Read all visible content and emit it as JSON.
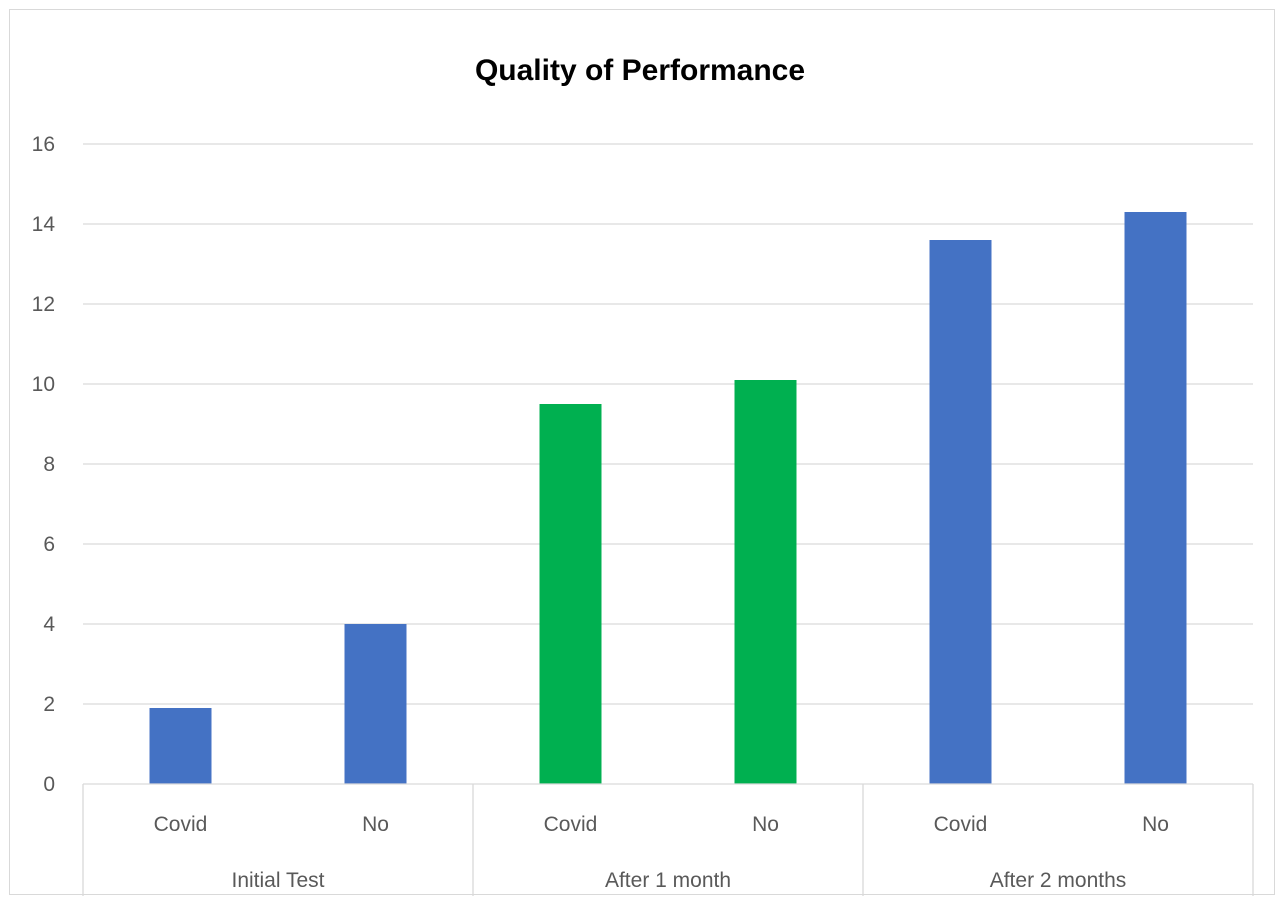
{
  "chart_data": {
    "type": "bar",
    "title": "Quality of Performance",
    "xlabel": "",
    "ylabel": "",
    "ylim": [
      0,
      16
    ],
    "y_ticks": [
      0,
      2,
      4,
      6,
      8,
      10,
      12,
      14,
      16
    ],
    "grid": true,
    "legend": "none",
    "groups": [
      {
        "label": "Initial Test",
        "categories": [
          "Covid",
          "No"
        ]
      },
      {
        "label": "After 1 month",
        "categories": [
          "Covid",
          "No"
        ]
      },
      {
        "label": "After 2 months",
        "categories": [
          "Covid",
          "No"
        ]
      }
    ],
    "categories": [
      "Covid",
      "No",
      "Covid",
      "No",
      "Covid",
      "No"
    ],
    "values": [
      1.9,
      4.0,
      9.5,
      10.1,
      13.6,
      14.3
    ],
    "bar_colors": [
      "#4472c4",
      "#4472c4",
      "#00b050",
      "#00b050",
      "#4472c4",
      "#4472c4"
    ]
  }
}
